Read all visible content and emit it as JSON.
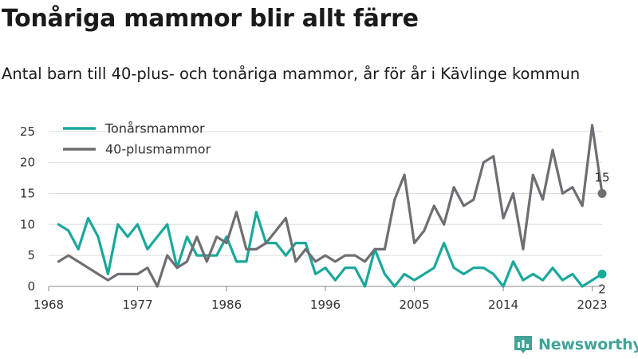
{
  "title": "Tonåriga mammor blir allt färre",
  "subtitle": "Antal barn till 40-plus- och tonåriga mammor, år för år i Kävlinge kommun",
  "brand": {
    "name": "Newsworthy",
    "logo_icon": "newsworthy-logo-icon"
  },
  "chart_data": {
    "type": "line",
    "x_ticks": [
      1968,
      1977,
      1986,
      1996,
      2005,
      2014,
      2023
    ],
    "y_ticks": [
      0,
      5,
      10,
      15,
      20,
      25
    ],
    "xlim": [
      1968,
      2024
    ],
    "ylim": [
      0,
      26
    ],
    "grid": "horizontal",
    "legend_position": "top-left",
    "x": [
      1969,
      1970,
      1971,
      1972,
      1973,
      1974,
      1975,
      1976,
      1977,
      1978,
      1979,
      1980,
      1981,
      1982,
      1983,
      1984,
      1985,
      1986,
      1987,
      1988,
      1989,
      1990,
      1991,
      1992,
      1993,
      1994,
      1995,
      1996,
      1997,
      1998,
      1999,
      2000,
      2001,
      2002,
      2003,
      2004,
      2005,
      2006,
      2007,
      2008,
      2009,
      2010,
      2011,
      2012,
      2013,
      2014,
      2015,
      2016,
      2017,
      2018,
      2019,
      2020,
      2021,
      2022,
      2023,
      2024
    ],
    "series": [
      {
        "name": "Tonårsmammor",
        "color": "#1aa89a",
        "values": [
          10,
          9,
          6,
          11,
          8,
          2,
          10,
          8,
          10,
          6,
          8,
          10,
          3,
          8,
          5,
          5,
          5,
          8,
          4,
          4,
          12,
          7,
          7,
          5,
          7,
          7,
          2,
          3,
          1,
          3,
          3,
          0,
          6,
          2,
          0,
          2,
          1,
          2,
          3,
          7,
          3,
          2,
          3,
          3,
          2,
          0,
          4,
          1,
          2,
          1,
          3,
          1,
          2,
          0,
          1,
          2
        ],
        "end_label": "2"
      },
      {
        "name": "40-plusmammor",
        "color": "#6e6e73",
        "values": [
          4,
          5,
          4,
          3,
          2,
          1,
          2,
          2,
          2,
          3,
          0,
          5,
          3,
          4,
          8,
          4,
          8,
          7,
          12,
          6,
          6,
          7,
          9,
          11,
          4,
          6,
          4,
          5,
          4,
          5,
          5,
          4,
          6,
          6,
          14,
          18,
          7,
          9,
          13,
          10,
          16,
          13,
          14,
          20,
          21,
          11,
          15,
          6,
          18,
          14,
          22,
          15,
          16,
          13,
          26,
          15
        ],
        "end_label": "15"
      }
    ]
  }
}
